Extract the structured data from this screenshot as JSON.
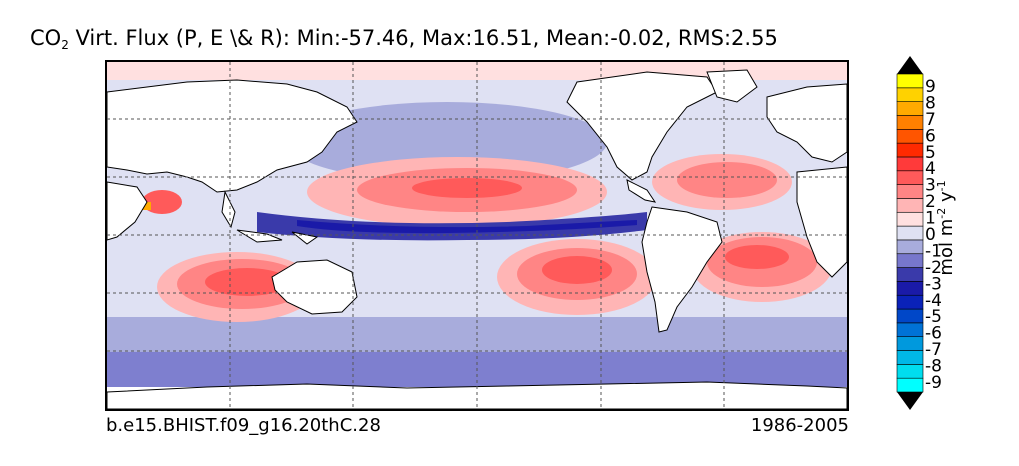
{
  "title": {
    "prefix": "CO",
    "subscript": "2",
    "text": " Virt. Flux (P, E \\& R): Min:-57.46, Max:16.51, Mean:-0.02, RMS:2.55"
  },
  "footer": {
    "case_name": "b.e15.BHIST.f09_g16.20thC.28",
    "years": "1986-2005"
  },
  "colorbar": {
    "label_main": "mol m",
    "label_exp1": "-2",
    "label_mid": " y",
    "label_exp2": "-1",
    "ticks": [
      "9",
      "8",
      "7",
      "6",
      "5",
      "4",
      "3",
      "2",
      "1",
      "0",
      "-1",
      "-2",
      "-3",
      "-4",
      "-5",
      "-6",
      "-7",
      "-8",
      "-9"
    ],
    "colors": [
      "#00ffff",
      "#00ddee",
      "#00b8e6",
      "#0099dd",
      "#0072d6",
      "#0047c8",
      "#0a22b8",
      "#1a1aa8",
      "#3a3aaa",
      "#7777cc",
      "#a8acdc",
      "#dfe1f3",
      "#ffe0e0",
      "#ffb5b5",
      "#ff8585",
      "#ff5a5a",
      "#ff3a3a",
      "#ff2a00",
      "#ff5500",
      "#ff8000",
      "#ffaa00",
      "#ffd200",
      "#ffff00"
    ],
    "over_color": "#000000",
    "under_color": "#000000"
  }
}
